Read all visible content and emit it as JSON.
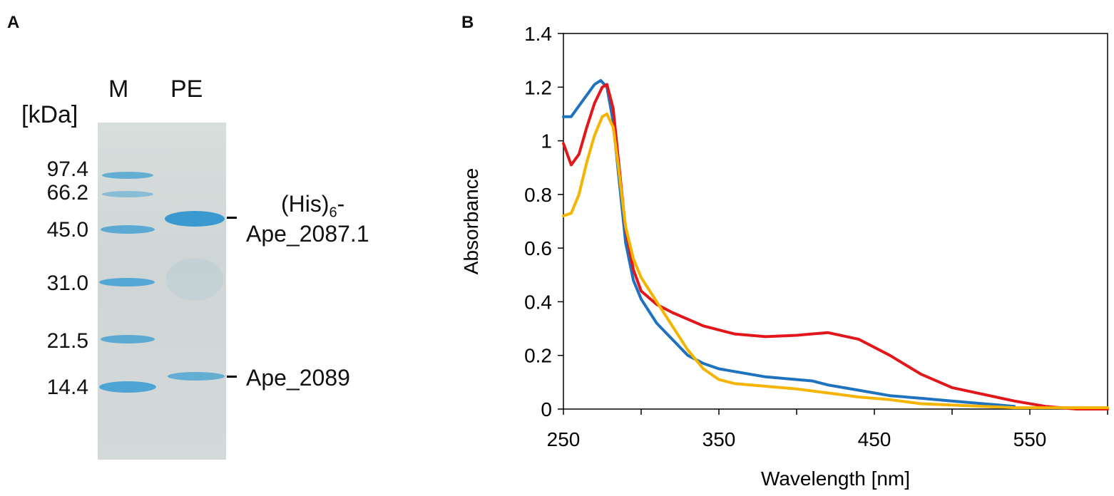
{
  "panel_a": {
    "label": "A",
    "unit": "[kDa]",
    "lanes": [
      "M",
      "PE"
    ],
    "markers": [
      "97.4",
      "66.2",
      "45.0",
      "31.0",
      "21.5",
      "14.4"
    ],
    "band_color": "#3f9fd2",
    "labels": {
      "his_prefix": "(His)",
      "his_sub": "6",
      "his_suffix": "-",
      "ape_2087": "Ape_2087.1",
      "ape_2089": "Ape_2089"
    }
  },
  "chart_data": {
    "panel_label": "B",
    "type": "line",
    "xlabel": "Wavelength [nm]",
    "ylabel": "Absorbance",
    "xlim": [
      250,
      600
    ],
    "ylim": [
      0,
      1.4
    ],
    "xticks": [
      "250",
      "350",
      "450",
      "550"
    ],
    "yticks": [
      "0",
      "0.2",
      "0.4",
      "0.6",
      "0.8",
      "1",
      "1.2",
      "1.4"
    ],
    "series": [
      {
        "name": "blue",
        "color": "#1f73be",
        "x": [
          250,
          255,
          260,
          265,
          270,
          274,
          278,
          282,
          285,
          290,
          295,
          300,
          310,
          320,
          330,
          340,
          350,
          360,
          380,
          400,
          410,
          420,
          440,
          460,
          480,
          500,
          520,
          540
        ],
        "y": [
          1.09,
          1.09,
          1.13,
          1.17,
          1.21,
          1.225,
          1.2,
          1.07,
          0.9,
          0.62,
          0.48,
          0.41,
          0.32,
          0.26,
          0.2,
          0.17,
          0.15,
          0.14,
          0.12,
          0.11,
          0.105,
          0.09,
          0.07,
          0.05,
          0.04,
          0.03,
          0.02,
          0.01
        ]
      },
      {
        "name": "red",
        "color": "#e3171b",
        "x": [
          250,
          255,
          260,
          265,
          270,
          275,
          278,
          282,
          285,
          290,
          295,
          300,
          310,
          320,
          340,
          360,
          380,
          400,
          420,
          440,
          460,
          480,
          500,
          520,
          540,
          560,
          580,
          600
        ],
        "y": [
          0.99,
          0.91,
          0.95,
          1.05,
          1.14,
          1.2,
          1.21,
          1.12,
          0.95,
          0.67,
          0.52,
          0.44,
          0.39,
          0.36,
          0.31,
          0.28,
          0.27,
          0.275,
          0.285,
          0.26,
          0.2,
          0.13,
          0.08,
          0.055,
          0.03,
          0.01,
          0.0,
          0.0
        ]
      },
      {
        "name": "yellow",
        "color": "#f5b400",
        "x": [
          250,
          255,
          260,
          265,
          270,
          275,
          278,
          282,
          285,
          290,
          295,
          300,
          310,
          320,
          330,
          340,
          350,
          360,
          380,
          400,
          420,
          440,
          460,
          480,
          500,
          520,
          540,
          560,
          580,
          600
        ],
        "y": [
          0.72,
          0.73,
          0.8,
          0.92,
          1.02,
          1.09,
          1.1,
          1.05,
          0.92,
          0.68,
          0.56,
          0.49,
          0.4,
          0.31,
          0.22,
          0.15,
          0.11,
          0.095,
          0.085,
          0.075,
          0.06,
          0.045,
          0.035,
          0.02,
          0.015,
          0.01,
          0.005,
          0.005,
          0.005,
          0.005
        ]
      }
    ]
  }
}
